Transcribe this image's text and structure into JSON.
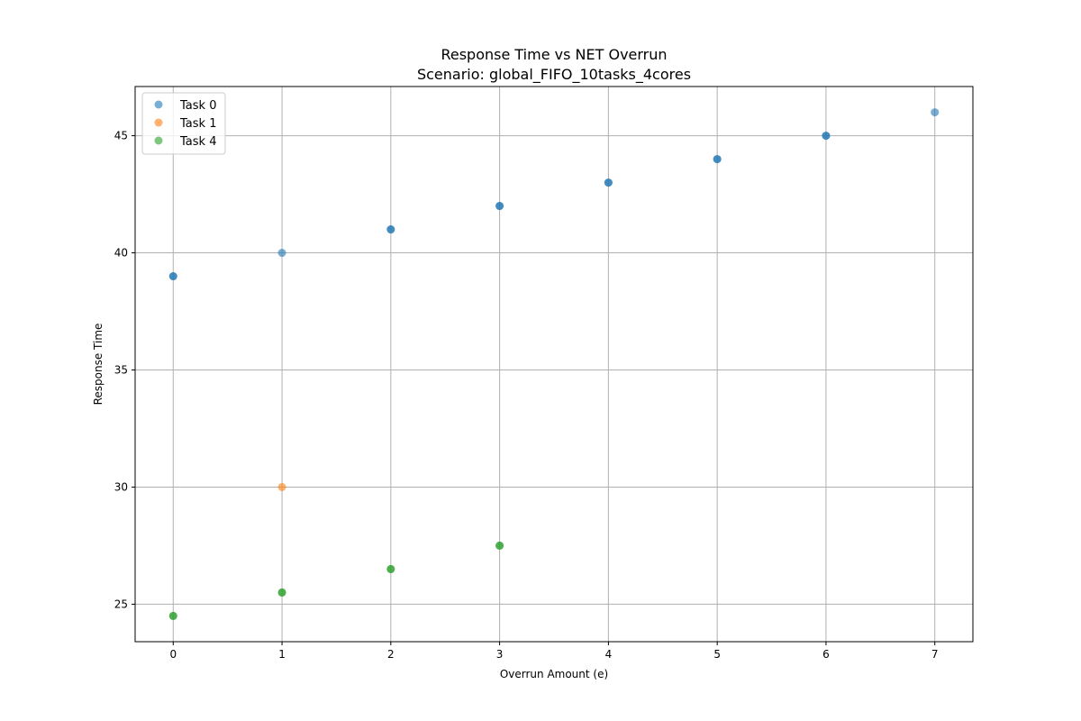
{
  "chart_data": {
    "type": "scatter",
    "title": "Response Time vs NET Overrun",
    "subtitle": "Scenario: global_FIFO_10tasks_4cores",
    "xlabel": "Overrun Amount (e)",
    "ylabel": "Response Time",
    "xlim": [
      -0.35,
      7.35
    ],
    "ylim": [
      23.4,
      47.1
    ],
    "xticks": [
      0,
      1,
      2,
      3,
      4,
      5,
      6,
      7
    ],
    "yticks": [
      25,
      30,
      35,
      40,
      45
    ],
    "grid": true,
    "legend_position": "top-left",
    "series": [
      {
        "name": "Task 0",
        "color": "#1f77b4",
        "points": [
          {
            "x": 0,
            "y": 39
          },
          {
            "x": 0,
            "y": 39
          },
          {
            "x": 1,
            "y": 40
          },
          {
            "x": 2,
            "y": 41
          },
          {
            "x": 2,
            "y": 41
          },
          {
            "x": 3,
            "y": 42
          },
          {
            "x": 3,
            "y": 42
          },
          {
            "x": 4,
            "y": 43
          },
          {
            "x": 4,
            "y": 43
          },
          {
            "x": 5,
            "y": 44
          },
          {
            "x": 5,
            "y": 44
          },
          {
            "x": 6,
            "y": 45
          },
          {
            "x": 6,
            "y": 45
          },
          {
            "x": 7,
            "y": 46
          }
        ]
      },
      {
        "name": "Task 1",
        "color": "#ff7f0e",
        "points": [
          {
            "x": 1,
            "y": 30
          }
        ]
      },
      {
        "name": "Task 4",
        "color": "#2ca02c",
        "points": [
          {
            "x": 0,
            "y": 24.5
          },
          {
            "x": 0,
            "y": 24.5
          },
          {
            "x": 1,
            "y": 25.5
          },
          {
            "x": 1,
            "y": 25.5
          },
          {
            "x": 2,
            "y": 26.5
          },
          {
            "x": 2,
            "y": 26.5
          },
          {
            "x": 3,
            "y": 27.5
          },
          {
            "x": 3,
            "y": 27.5
          }
        ]
      }
    ]
  }
}
